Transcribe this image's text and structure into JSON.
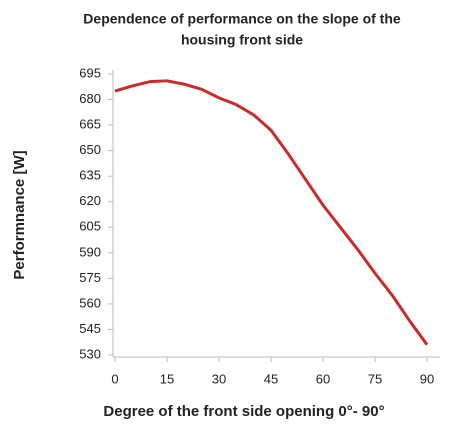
{
  "chart_data": {
    "type": "line",
    "title": [
      "Dependence of performance on the slope of the",
      "housing front side"
    ],
    "x_label": "Degree of the front side opening 0°- 90°",
    "y_label": "Performnance  [W]",
    "x": [
      0,
      5,
      10,
      15,
      20,
      25,
      30,
      35,
      40,
      45,
      50,
      55,
      60,
      65,
      70,
      75,
      80,
      85,
      90
    ],
    "series": [
      {
        "color": "#cc2a2a",
        "values": [
          685,
          688,
          690.5,
          691,
          689,
          686,
          681,
          677,
          671,
          662,
          648,
          633,
          618,
          605,
          592,
          578,
          565,
          550,
          536
        ]
      }
    ],
    "xlim": [
      0,
      90
    ],
    "xticks": [
      0,
      15,
      30,
      45,
      60,
      75,
      90
    ],
    "ylim": [
      530,
      695
    ],
    "yticks": [
      530,
      545,
      560,
      575,
      590,
      605,
      620,
      635,
      650,
      665,
      680,
      695
    ],
    "grid": false
  }
}
